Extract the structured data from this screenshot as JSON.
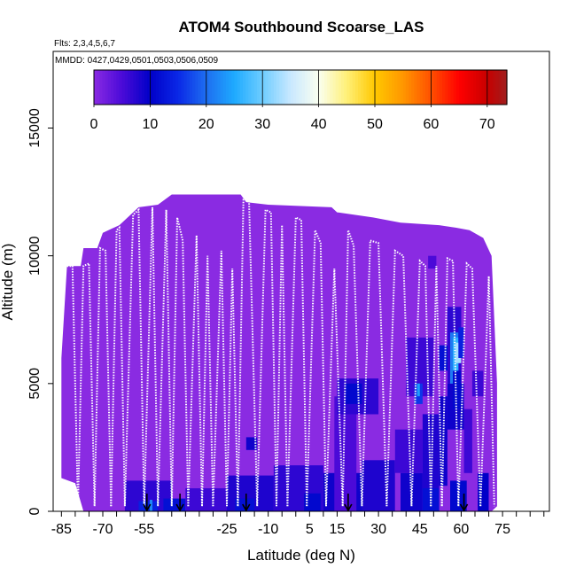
{
  "chart_data": {
    "type": "heatmap",
    "title": "ATOM4 Southbound Scoarse_LAS",
    "flights_note": "Flts: 2,3,4,5,6,7",
    "dates_note": "MMDD: 0427,0429,0501,0503,0506,0509",
    "xlabel": "Latitude (deg N)",
    "ylabel": "Altitude (m)",
    "xlim": [
      -88,
      92
    ],
    "ylim": [
      0,
      18000
    ],
    "x_ticks": [
      -85,
      -70,
      -55,
      -40,
      -25,
      -10,
      5,
      15,
      30,
      45,
      60,
      75
    ],
    "x_tick_labels": [
      "-85",
      "-70",
      "-55",
      "",
      "-25",
      "-10",
      "5",
      "15",
      "30",
      "45",
      "60",
      "75"
    ],
    "x_minor_ticks": [
      -80,
      -75,
      -65,
      -60,
      -50,
      -45,
      -35,
      -30,
      -20,
      -15,
      -5,
      0,
      10,
      20,
      25,
      35,
      40,
      50,
      55,
      65,
      70,
      80,
      85,
      90
    ],
    "y_ticks": [
      0,
      5000,
      10000,
      15000
    ],
    "y_tick_labels": [
      "0",
      "5000",
      "10000",
      "15000"
    ],
    "colorbar": {
      "min": 0,
      "max": 73.5,
      "ticks": [
        0,
        10,
        20,
        30,
        40,
        50,
        60,
        70
      ],
      "tick_labels": [
        "0",
        "10",
        "20",
        "30",
        "40",
        "50",
        "60",
        "70"
      ],
      "stops": [
        {
          "v": 0,
          "color": "#8a2be2"
        },
        {
          "v": 5,
          "color": "#4b0ad8"
        },
        {
          "v": 10,
          "color": "#0000c8"
        },
        {
          "v": 15,
          "color": "#0a28e6"
        },
        {
          "v": 20,
          "color": "#1e6ef0"
        },
        {
          "v": 25,
          "color": "#1eaaff"
        },
        {
          "v": 30,
          "color": "#6ecdff"
        },
        {
          "v": 35,
          "color": "#c8e8ff"
        },
        {
          "v": 40,
          "color": "#fafff0"
        },
        {
          "v": 45,
          "color": "#fff078"
        },
        {
          "v": 50,
          "color": "#ffc800"
        },
        {
          "v": 55,
          "color": "#ff9600"
        },
        {
          "v": 60,
          "color": "#ff5000"
        },
        {
          "v": 65,
          "color": "#ff0000"
        },
        {
          "v": 70,
          "color": "#c80000"
        },
        {
          "v": 73.5,
          "color": "#a01e1e"
        }
      ]
    },
    "background_value": 0,
    "envelope": [
      [
        -85,
        1300
      ],
      [
        -85,
        6000
      ],
      [
        -83,
        9600
      ],
      [
        -78,
        9600
      ],
      [
        -77,
        10300
      ],
      [
        -72,
        10300
      ],
      [
        -70,
        10900
      ],
      [
        -64,
        11200
      ],
      [
        -57,
        11900
      ],
      [
        -50,
        12000
      ],
      [
        -45,
        12400
      ],
      [
        -20,
        12400
      ],
      [
        -18,
        12100
      ],
      [
        -10,
        12000
      ],
      [
        13,
        11900
      ],
      [
        15,
        11700
      ],
      [
        28,
        11500
      ],
      [
        38,
        11300
      ],
      [
        52,
        11200
      ],
      [
        58,
        11100
      ],
      [
        63,
        11000
      ],
      [
        68,
        10700
      ],
      [
        71,
        10000
      ],
      [
        73,
        5000
      ],
      [
        73,
        200
      ],
      [
        71,
        0
      ],
      [
        -77,
        0
      ],
      [
        -80,
        1100
      ]
    ],
    "cells": [
      {
        "lat": [
          -62,
          -45
        ],
        "alt": [
          0,
          1200
        ],
        "value": 7
      },
      {
        "lat": [
          -57,
          -50
        ],
        "alt": [
          0,
          400
        ],
        "value": 14
      },
      {
        "lat": [
          -53,
          -52
        ],
        "alt": [
          0,
          450
        ],
        "value": 22
      },
      {
        "lat": [
          -48,
          -40
        ],
        "alt": [
          0,
          500
        ],
        "value": 12
      },
      {
        "lat": [
          -40,
          -25
        ],
        "alt": [
          0,
          900
        ],
        "value": 6
      },
      {
        "lat": [
          -25,
          -8
        ],
        "alt": [
          0,
          1400
        ],
        "value": 8
      },
      {
        "lat": [
          -18,
          -14
        ],
        "alt": [
          2400,
          2900
        ],
        "value": 9
      },
      {
        "lat": [
          -22,
          -15
        ],
        "alt": [
          0,
          500
        ],
        "value": 12
      },
      {
        "lat": [
          -8,
          10
        ],
        "alt": [
          0,
          1800
        ],
        "value": 7
      },
      {
        "lat": [
          3,
          9
        ],
        "alt": [
          0,
          700
        ],
        "value": 11
      },
      {
        "lat": [
          10,
          24
        ],
        "alt": [
          0,
          1500
        ],
        "value": 9
      },
      {
        "lat": [
          14,
          22
        ],
        "alt": [
          0,
          4500
        ],
        "value": 5
      },
      {
        "lat": [
          15,
          30
        ],
        "alt": [
          3800,
          5200
        ],
        "value": 7
      },
      {
        "lat": [
          18,
          24
        ],
        "alt": [
          4200,
          5000
        ],
        "value": 11
      },
      {
        "lat": [
          24,
          36
        ],
        "alt": [
          0,
          2000
        ],
        "value": 8
      },
      {
        "lat": [
          36,
          46
        ],
        "alt": [
          1500,
          3200
        ],
        "value": 6
      },
      {
        "lat": [
          38,
          46
        ],
        "alt": [
          0,
          1500
        ],
        "value": 9
      },
      {
        "lat": [
          40,
          50
        ],
        "alt": [
          4500,
          6800
        ],
        "value": 6
      },
      {
        "lat": [
          43,
          46
        ],
        "alt": [
          4200,
          5000
        ],
        "value": 16
      },
      {
        "lat": [
          44,
          45
        ],
        "alt": [
          4500,
          5000
        ],
        "value": 24
      },
      {
        "lat": [
          46,
          52
        ],
        "alt": [
          900,
          3800
        ],
        "value": 8
      },
      {
        "lat": [
          46,
          52
        ],
        "alt": [
          0,
          900
        ],
        "value": 12
      },
      {
        "lat": [
          48,
          51
        ],
        "alt": [
          9500,
          10000
        ],
        "value": 5
      },
      {
        "lat": [
          52,
          56
        ],
        "alt": [
          5500,
          6500
        ],
        "value": 12
      },
      {
        "lat": [
          52,
          55
        ],
        "alt": [
          1000,
          4500
        ],
        "value": 9
      },
      {
        "lat": [
          55,
          60
        ],
        "alt": [
          5000,
          8000
        ],
        "value": 7
      },
      {
        "lat": [
          55,
          61
        ],
        "alt": [
          3200,
          5000
        ],
        "value": 9
      },
      {
        "lat": [
          56,
          59
        ],
        "alt": [
          5000,
          7000
        ],
        "value": 21
      },
      {
        "lat": [
          57,
          59
        ],
        "alt": [
          5500,
          6800
        ],
        "value": 26
      },
      {
        "lat": [
          58,
          60
        ],
        "alt": [
          5800,
          6600
        ],
        "value": 33
      },
      {
        "lat": [
          59,
          61
        ],
        "alt": [
          6000,
          7200
        ],
        "value": 14
      },
      {
        "lat": [
          57,
          60
        ],
        "alt": [
          4000,
          5500
        ],
        "value": 11
      },
      {
        "lat": [
          56,
          62
        ],
        "alt": [
          0,
          1200
        ],
        "value": 11
      },
      {
        "lat": [
          61,
          64
        ],
        "alt": [
          1500,
          4000
        ],
        "value": 6
      },
      {
        "lat": [
          64,
          68
        ],
        "alt": [
          4500,
          5500
        ],
        "value": 6
      },
      {
        "lat": [
          66,
          70
        ],
        "alt": [
          0,
          1500
        ],
        "value": 10
      }
    ],
    "profiles": [
      [
        [
          -83,
          9600
        ],
        [
          -81,
          9600
        ],
        [
          -79,
          200
        ]
      ],
      [
        [
          -79,
          200
        ],
        [
          -77,
          9600
        ],
        [
          -75,
          9700
        ],
        [
          -73,
          200
        ]
      ],
      [
        [
          -73,
          200
        ],
        [
          -71,
          10300
        ],
        [
          -69,
          10200
        ],
        [
          -67,
          200
        ]
      ],
      [
        [
          -67,
          200
        ],
        [
          -65,
          11000
        ],
        [
          -64,
          11100
        ],
        [
          -62,
          200
        ]
      ],
      [
        [
          -62,
          200
        ],
        [
          -59,
          11600
        ],
        [
          -57,
          11800
        ],
        [
          -55,
          200
        ]
      ],
      [
        [
          -55,
          200
        ],
        [
          -52,
          11900
        ],
        [
          -50,
          200
        ]
      ],
      [
        [
          -50,
          200
        ],
        [
          -47,
          11800
        ],
        [
          -45,
          200
        ]
      ],
      [
        [
          -45,
          200
        ],
        [
          -43,
          11500
        ],
        [
          -41,
          10600
        ],
        [
          -39,
          200
        ]
      ],
      [
        [
          -39,
          200
        ],
        [
          -36,
          10800
        ],
        [
          -34,
          200
        ]
      ],
      [
        [
          -34,
          200
        ],
        [
          -32,
          10000
        ],
        [
          -30,
          200
        ]
      ],
      [
        [
          -30,
          200
        ],
        [
          -27,
          10200
        ],
        [
          -25,
          200
        ]
      ],
      [
        [
          -25,
          200
        ],
        [
          -23,
          9500
        ],
        [
          -21,
          200
        ]
      ],
      [
        [
          -21,
          200
        ],
        [
          -19,
          12200
        ],
        [
          -17,
          12300
        ],
        [
          -14,
          200
        ]
      ],
      [
        [
          -14,
          200
        ],
        [
          -11,
          11800
        ],
        [
          -9,
          11700
        ],
        [
          -7,
          200
        ]
      ],
      [
        [
          -7,
          200
        ],
        [
          -5,
          11200
        ],
        [
          -3,
          200
        ]
      ],
      [
        [
          -3,
          200
        ],
        [
          0,
          11500
        ],
        [
          2,
          11400
        ],
        [
          4,
          200
        ]
      ],
      [
        [
          4,
          200
        ],
        [
          7,
          11000
        ],
        [
          9,
          10500
        ],
        [
          11,
          200
        ]
      ],
      [
        [
          11,
          200
        ],
        [
          14,
          9500
        ],
        [
          17,
          200
        ]
      ],
      [
        [
          17,
          200
        ],
        [
          19,
          11000
        ],
        [
          21,
          10400
        ],
        [
          24,
          200
        ]
      ],
      [
        [
          24,
          200
        ],
        [
          27,
          10600
        ],
        [
          30,
          10500
        ],
        [
          33,
          200
        ]
      ],
      [
        [
          33,
          200
        ],
        [
          36,
          10200
        ],
        [
          39,
          10000
        ],
        [
          42,
          200
        ]
      ],
      [
        [
          42,
          200
        ],
        [
          45,
          9800
        ],
        [
          47,
          9600
        ],
        [
          49,
          200
        ]
      ],
      [
        [
          49,
          200
        ],
        [
          51,
          9600
        ],
        [
          53,
          200
        ]
      ],
      [
        [
          53,
          200
        ],
        [
          55,
          9900
        ],
        [
          57,
          9800
        ],
        [
          59,
          200
        ]
      ],
      [
        [
          59,
          200
        ],
        [
          62,
          9700
        ],
        [
          64,
          9500
        ],
        [
          67,
          200
        ]
      ],
      [
        [
          67,
          200
        ],
        [
          70,
          9200
        ],
        [
          72,
          200
        ]
      ]
    ],
    "markers_lat": [
      -54,
      -42,
      -18,
      19,
      61
    ]
  }
}
